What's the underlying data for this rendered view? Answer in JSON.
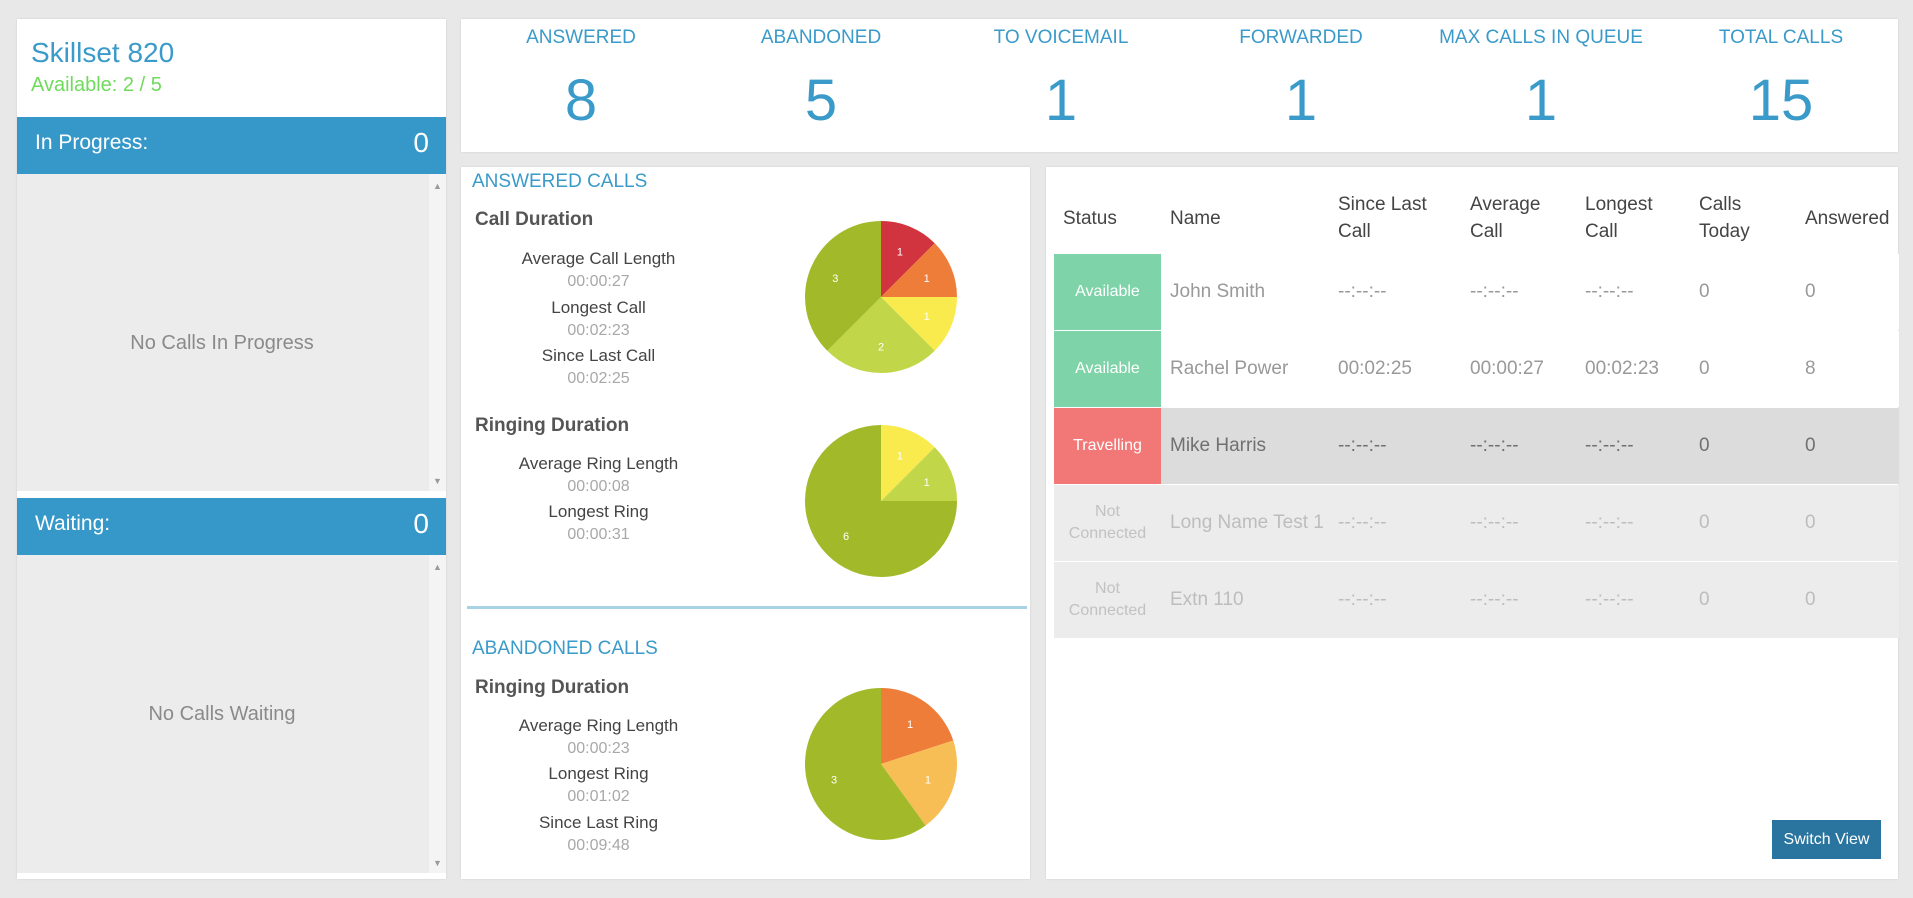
{
  "skillset": {
    "title": "Skillset 820",
    "available": "Available: 2 / 5"
  },
  "in_progress": {
    "label": "In Progress:",
    "count": "0",
    "empty_text": "No Calls In Progress"
  },
  "waiting": {
    "label": "Waiting:",
    "count": "0",
    "empty_text": "No Calls Waiting"
  },
  "stats": [
    {
      "label": "ANSWERED",
      "value": "8"
    },
    {
      "label": "ABANDONED",
      "value": "5"
    },
    {
      "label": "TO VOICEMAIL",
      "value": "1"
    },
    {
      "label": "FORWARDED",
      "value": "1"
    },
    {
      "label": "MAX CALLS IN QUEUE",
      "value": "1"
    },
    {
      "label": "TOTAL CALLS",
      "value": "15"
    }
  ],
  "answered": {
    "title": "ANSWERED CALLS",
    "call_duration": {
      "title": "Call Duration",
      "metrics": [
        {
          "label": "Average Call Length",
          "value": "00:00:27"
        },
        {
          "label": "Longest Call",
          "value": "00:02:23"
        },
        {
          "label": "Since Last Call",
          "value": "00:02:25"
        }
      ]
    },
    "ringing_duration": {
      "title": "Ringing Duration",
      "metrics": [
        {
          "label": "Average Ring Length",
          "value": "00:00:08"
        },
        {
          "label": "Longest Ring",
          "value": "00:00:31"
        }
      ]
    }
  },
  "abandoned": {
    "title": "ABANDONED CALLS",
    "ringing_duration": {
      "title": "Ringing Duration",
      "metrics": [
        {
          "label": "Average Ring Length",
          "value": "00:00:23"
        },
        {
          "label": "Longest Ring",
          "value": "00:01:02"
        },
        {
          "label": "Since Last Ring",
          "value": "00:09:48"
        }
      ]
    }
  },
  "chart_data": [
    {
      "type": "pie",
      "slices": [
        {
          "value": 1,
          "color": "#d1343f"
        },
        {
          "value": 1,
          "color": "#ee7d3a"
        },
        {
          "value": 1,
          "color": "#f9ea4e"
        },
        {
          "value": 2,
          "color": "#c1d648"
        },
        {
          "value": 3,
          "color": "#a2ba2a"
        }
      ]
    },
    {
      "type": "pie",
      "slices": [
        {
          "value": 1,
          "color": "#f9ea4e"
        },
        {
          "value": 1,
          "color": "#c1d648"
        },
        {
          "value": 6,
          "color": "#a2ba2a"
        }
      ]
    },
    {
      "type": "pie",
      "slices": [
        {
          "value": 1,
          "color": "#ee7d3a"
        },
        {
          "value": 1,
          "color": "#f7be56"
        },
        {
          "value": 3,
          "color": "#a2ba2a"
        }
      ]
    }
  ],
  "agents": {
    "headers": {
      "status": "Status",
      "name": "Name",
      "since_last_1": "Since Last",
      "since_last_2": "Call",
      "average_1": "Average",
      "average_2": "Call",
      "longest_1": "Longest",
      "longest_2": "Call",
      "calls_today_1": "Calls",
      "calls_today_2": "Today",
      "answered": "Answered"
    },
    "rows": [
      {
        "status": "Available",
        "status_color": "#7ed3a8",
        "row_bg": "#ffffff",
        "text_color": "#999999",
        "name": "John Smith",
        "since_last": "--:--:--",
        "average": "--:--:--",
        "longest": "--:--:--",
        "calls_today": "0",
        "answered": "0"
      },
      {
        "status": "Available",
        "status_color": "#7ed3a8",
        "row_bg": "#ffffff",
        "text_color": "#999999",
        "name": "Rachel Power",
        "since_last": "00:02:25",
        "average": "00:00:27",
        "longest": "00:02:23",
        "calls_today": "0",
        "answered": "8"
      },
      {
        "status": "Travelling",
        "status_color": "#f27777",
        "row_bg": "#dcdcdc",
        "text_color": "#707070",
        "name": "Mike Harris",
        "since_last": "--:--:--",
        "average": "--:--:--",
        "longest": "--:--:--",
        "calls_today": "0",
        "answered": "0"
      },
      {
        "status": "Not Connected",
        "status_color": "#ececec",
        "row_bg": "#ececec",
        "text_color": "#bdbdbd",
        "name": "Long Name Test 1",
        "since_last": "--:--:--",
        "average": "--:--:--",
        "longest": "--:--:--",
        "calls_today": "0",
        "answered": "0"
      },
      {
        "status": "Not Connected",
        "status_color": "#ececec",
        "row_bg": "#ececec",
        "text_color": "#bdbdbd",
        "name": "Extn 110",
        "since_last": "--:--:--",
        "average": "--:--:--",
        "longest": "--:--:--",
        "calls_today": "0",
        "answered": "0"
      }
    ],
    "switch_view_label": "Switch View"
  }
}
